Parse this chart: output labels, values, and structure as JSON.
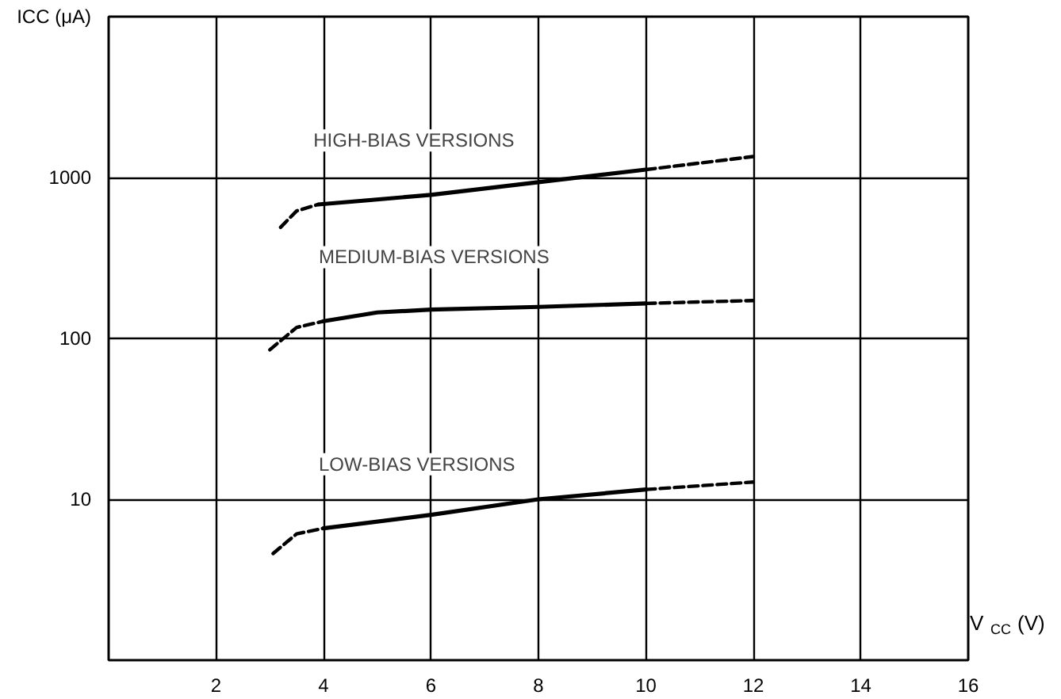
{
  "chart_data": {
    "type": "line",
    "xlabel": "V$_{CC}$ (V)",
    "ylabel": "ICC (μA)",
    "log": "y",
    "grid": true,
    "xlim": [
      0,
      16
    ],
    "xticks": [
      2,
      4,
      6,
      8,
      10,
      12,
      14,
      16
    ],
    "ylim": [
      1,
      10000
    ],
    "yticks": [
      10,
      100,
      1000
    ],
    "series": [
      {
        "color": "#000000",
        "line_style": "dashed",
        "x": [
          3.2,
          3.5,
          3.9
        ],
        "values": [
          490,
          620,
          680
        ]
      },
      {
        "name": "HIGH-BIAS VERSIONS",
        "color": "#000000",
        "line_style": "solid",
        "x": [
          3.9,
          6,
          8,
          10
        ],
        "values": [
          680,
          780,
          935,
          1120
        ]
      },
      {
        "color": "#000000",
        "line_style": "dashed",
        "x": [
          10,
          12
        ],
        "values": [
          1120,
          1350
        ]
      },
      {
        "color": "#000000",
        "line_style": "dashed",
        "x": [
          3.0,
          3.5,
          4
        ],
        "values": [
          85,
          117,
          128
        ]
      },
      {
        "name": "MEDIUM-BIAS VERSIONS",
        "color": "#000000",
        "line_style": "solid",
        "x": [
          4,
          5,
          6,
          8,
          10
        ],
        "values": [
          128,
          145,
          151,
          157,
          165
        ]
      },
      {
        "color": "#000000",
        "line_style": "dashed",
        "x": [
          10,
          12
        ],
        "values": [
          165,
          172
        ]
      },
      {
        "color": "#000000",
        "line_style": "dashed",
        "x": [
          3.06,
          3.5,
          4
        ],
        "values": [
          4.6,
          6.1,
          6.6
        ]
      },
      {
        "name": "LOW-BIAS VERSIONS",
        "color": "#000000",
        "line_style": "solid",
        "x": [
          4,
          6,
          8,
          10
        ],
        "values": [
          6.6,
          8.0,
          10,
          11.5
        ]
      },
      {
        "color": "#000000",
        "line_style": "dashed",
        "x": [
          10,
          12
        ],
        "values": [
          11.5,
          12.8
        ]
      }
    ]
  }
}
